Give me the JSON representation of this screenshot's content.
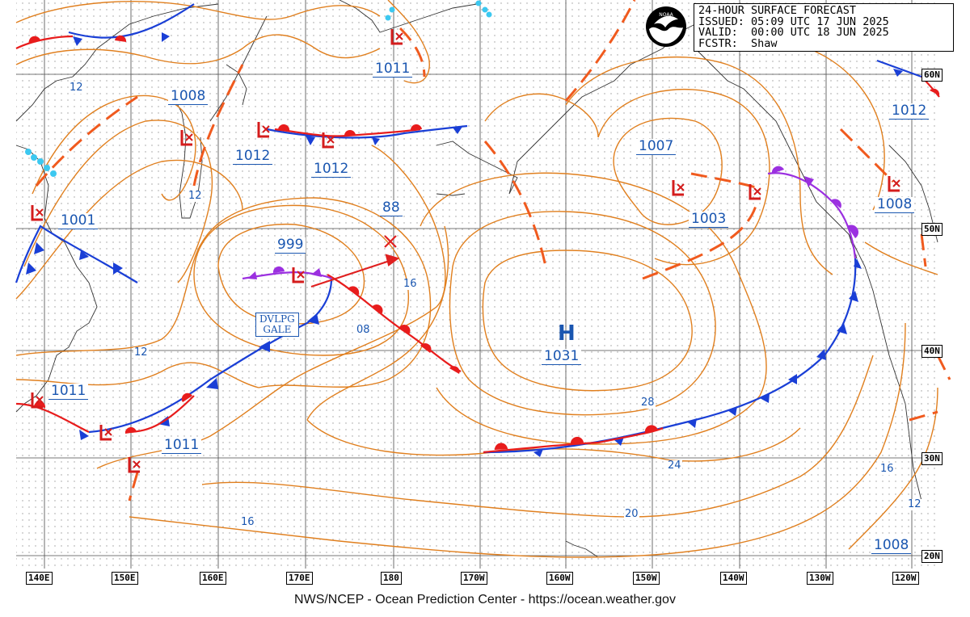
{
  "header": {
    "line1": "24-HOUR SURFACE FORECAST",
    "line2": "ISSUED: 05:09 UTC 17 JUN 2025",
    "line3": "VALID:  00:00 UTC 18 JUN 2025",
    "line4": "FCSTR:  Shaw"
  },
  "logo_text": "NOAA",
  "footer": "NWS/NCEP - Ocean Prediction Center - https://ocean.weather.gov",
  "longitudes": [
    "140E",
    "150E",
    "160E",
    "170E",
    "180",
    "170W",
    "160W",
    "150W",
    "140W",
    "130W",
    "120W"
  ],
  "latitudes": [
    "60N",
    "50N",
    "40N",
    "30N",
    "20N"
  ],
  "pressure_labels": [
    "1011",
    "1008",
    "1012",
    "1012",
    "1001",
    "999",
    "88",
    "1007",
    "1003",
    "1008",
    "1012",
    "1031",
    "1011",
    "1011",
    "1008"
  ],
  "isobar_labels": [
    "12",
    "12",
    "16",
    "08",
    "12",
    "28",
    "24",
    "20",
    "16",
    "16",
    "12"
  ],
  "warning": {
    "line1": "DVLPG",
    "line2": "GALE"
  },
  "high_symbol": "H",
  "colors": {
    "isobar": "#e07f1e",
    "cold_front": "#1a3fd6",
    "warm_front": "#e81c1c",
    "occluded": "#9b30e0",
    "trough": "#f05a1e",
    "label": "#1a56b0"
  }
}
